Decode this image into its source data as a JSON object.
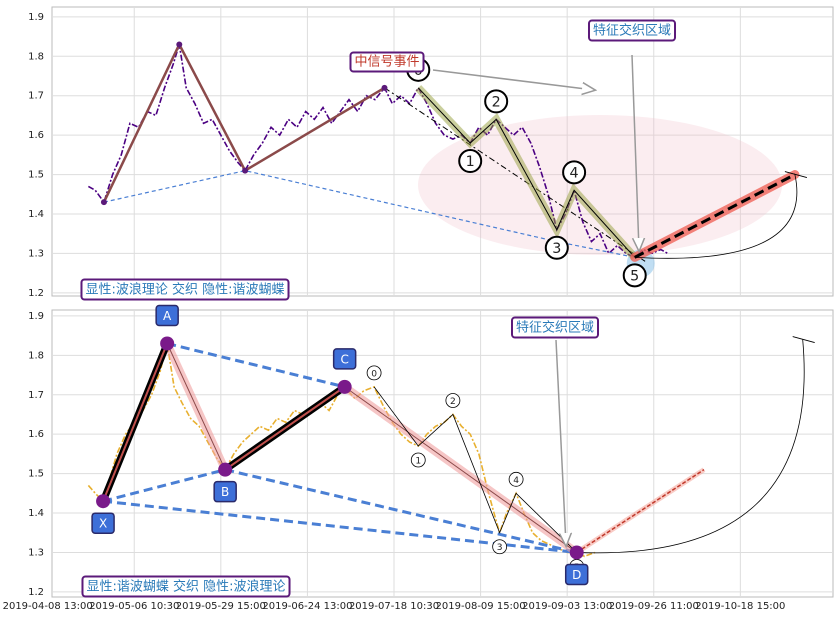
{
  "chart_data": [
    {
      "type": "line",
      "color": "#4b0082",
      "ylim": [
        1.192,
        1.925
      ],
      "yticks": [
        1.2,
        1.3,
        1.4,
        1.5,
        1.6,
        1.7,
        1.8,
        1.9
      ],
      "xlim": [
        0.05,
        9.07
      ],
      "xticks": [
        0,
        1,
        2,
        3,
        4,
        5,
        6,
        7,
        8
      ],
      "grid": true,
      "x": [
        0.47,
        0.55,
        0.65,
        0.75,
        0.85,
        0.95,
        1.05,
        1.15,
        1.25,
        1.35,
        1.45,
        1.52,
        1.6,
        1.7,
        1.8,
        1.9,
        2.0,
        2.1,
        2.2,
        2.28,
        2.38,
        2.48,
        2.58,
        2.68,
        2.78,
        2.88,
        2.98,
        3.08,
        3.18,
        3.28,
        3.38,
        3.48,
        3.58,
        3.68,
        3.78,
        3.89,
        3.98,
        4.08,
        4.18,
        4.28,
        4.38,
        4.48,
        4.58,
        4.68,
        4.78,
        4.88,
        4.98,
        5.08,
        5.18,
        5.28,
        5.38,
        5.48,
        5.58,
        5.68,
        5.78,
        5.88,
        5.98,
        6.08,
        6.18,
        6.28,
        6.38,
        6.48,
        6.58,
        6.68,
        6.78,
        6.88,
        6.98,
        7.08,
        7.16
      ],
      "values": [
        1.47,
        1.46,
        1.43,
        1.5,
        1.55,
        1.63,
        1.62,
        1.66,
        1.65,
        1.72,
        1.78,
        1.83,
        1.72,
        1.68,
        1.63,
        1.64,
        1.6,
        1.56,
        1.53,
        1.51,
        1.55,
        1.58,
        1.62,
        1.6,
        1.64,
        1.62,
        1.66,
        1.64,
        1.67,
        1.63,
        1.66,
        1.69,
        1.66,
        1.7,
        1.69,
        1.72,
        1.68,
        1.7,
        1.68,
        1.72,
        1.68,
        1.63,
        1.6,
        1.59,
        1.6,
        1.58,
        1.62,
        1.6,
        1.64,
        1.62,
        1.6,
        1.62,
        1.58,
        1.52,
        1.45,
        1.36,
        1.4,
        1.46,
        1.38,
        1.33,
        1.35,
        1.3,
        1.32,
        1.3,
        1.29,
        1.31,
        1.3,
        1.31,
        1.3
      ],
      "waves": {
        "x": [
          0.65,
          1.52,
          2.28,
          3.89
        ],
        "values": [
          1.43,
          1.83,
          1.51,
          1.72
        ]
      },
      "support": {
        "x": [
          0.65,
          2.28,
          5.88,
          6.78
        ],
        "values": [
          1.43,
          1.51,
          1.33,
          1.29
        ]
      },
      "trend": {
        "x": [
          3.89,
          6.9
        ],
        "values": [
          1.72,
          1.28
        ]
      },
      "elliott": {
        "labels": [
          "0",
          "1",
          "2",
          "3",
          "4",
          "5"
        ],
        "x": [
          4.28,
          4.88,
          5.18,
          5.88,
          6.08,
          6.78
        ],
        "values": [
          1.72,
          1.58,
          1.64,
          1.36,
          1.46,
          1.29
        ]
      },
      "projection": {
        "x": [
          6.78,
          8.63
        ],
        "values": [
          1.29,
          1.5
        ]
      },
      "arc": {
        "x": [
          6.78,
          8.63
        ],
        "values": [
          1.29,
          1.5
        ]
      },
      "annotations": [
        "中信号事件",
        "特征交织区域",
        "显性:波浪理论 交织 隐性:谐波蝴蝶"
      ]
    },
    {
      "type": "line",
      "color": "#e8b030",
      "ylim": [
        1.187,
        1.915
      ],
      "yticks": [
        1.2,
        1.3,
        1.4,
        1.5,
        1.6,
        1.7,
        1.8,
        1.9
      ],
      "xlim": [
        0.05,
        9.07
      ],
      "xticks": [
        {
          "value": 0,
          "label": "2019-04-08 13:00"
        },
        {
          "value": 1,
          "label": "2019-05-06 10:30"
        },
        {
          "value": 2,
          "label": "2019-05-29 15:00"
        },
        {
          "value": 3,
          "label": "2019-06-24 13:00"
        },
        {
          "value": 4,
          "label": "2019-07-18 10:30"
        },
        {
          "value": 5,
          "label": "2019-08-09 15:00"
        },
        {
          "value": 6,
          "label": "2019-09-03 13:00"
        },
        {
          "value": 7,
          "label": "2019-09-26 11:00"
        },
        {
          "value": 8,
          "label": "2019-10-18 15:00"
        }
      ],
      "grid": true,
      "x": [
        0.47,
        0.55,
        0.64,
        0.72,
        0.8,
        0.9,
        1.0,
        1.1,
        1.2,
        1.3,
        1.38,
        1.46,
        1.55,
        1.65,
        1.75,
        1.85,
        1.95,
        2.05,
        2.15,
        2.25,
        2.35,
        2.45,
        2.55,
        2.65,
        2.75,
        2.85,
        2.95,
        3.05,
        3.15,
        3.25,
        3.35,
        3.43,
        3.55,
        3.65,
        3.77,
        3.88,
        3.98,
        4.08,
        4.18,
        4.28,
        4.38,
        4.48,
        4.58,
        4.68,
        4.78,
        4.88,
        4.98,
        5.08,
        5.18,
        5.22,
        5.3,
        5.41,
        5.5,
        5.6,
        5.7,
        5.8,
        5.9,
        6.0,
        6.11,
        6.2,
        6.32
      ],
      "values": [
        1.47,
        1.45,
        1.43,
        1.49,
        1.55,
        1.6,
        1.63,
        1.66,
        1.7,
        1.76,
        1.83,
        1.72,
        1.68,
        1.64,
        1.62,
        1.58,
        1.54,
        1.51,
        1.55,
        1.58,
        1.6,
        1.62,
        1.61,
        1.64,
        1.63,
        1.66,
        1.65,
        1.67,
        1.68,
        1.66,
        1.7,
        1.72,
        1.69,
        1.71,
        1.72,
        1.67,
        1.63,
        1.6,
        1.58,
        1.57,
        1.6,
        1.62,
        1.63,
        1.65,
        1.62,
        1.6,
        1.55,
        1.46,
        1.38,
        1.35,
        1.4,
        1.45,
        1.4,
        1.35,
        1.33,
        1.32,
        1.31,
        1.3,
        1.3,
        1.29,
        1.3
      ],
      "harmonic": {
        "labels": [
          "X",
          "A",
          "B",
          "C",
          "D"
        ],
        "x": [
          0.64,
          1.38,
          2.05,
          3.43,
          6.11
        ],
        "values": [
          1.43,
          1.83,
          1.51,
          1.72,
          1.3
        ]
      },
      "elliott": {
        "labels": [
          "0",
          "1",
          "2",
          "3",
          "4",
          "5"
        ],
        "x": [
          3.77,
          4.28,
          4.68,
          5.22,
          5.41,
          6.11
        ],
        "values": [
          1.72,
          1.57,
          1.65,
          1.35,
          1.45,
          1.3
        ]
      },
      "projection": {
        "x": [
          6.11,
          7.58
        ],
        "values": [
          1.3,
          1.51
        ]
      },
      "arc": {
        "x": [
          6.11,
          8.72
        ],
        "values": [
          1.3,
          1.84
        ]
      },
      "annotations": [
        "特征交织区域",
        "显性:谐波蝴蝶 交织 隐性:波浪理论"
      ]
    }
  ]
}
